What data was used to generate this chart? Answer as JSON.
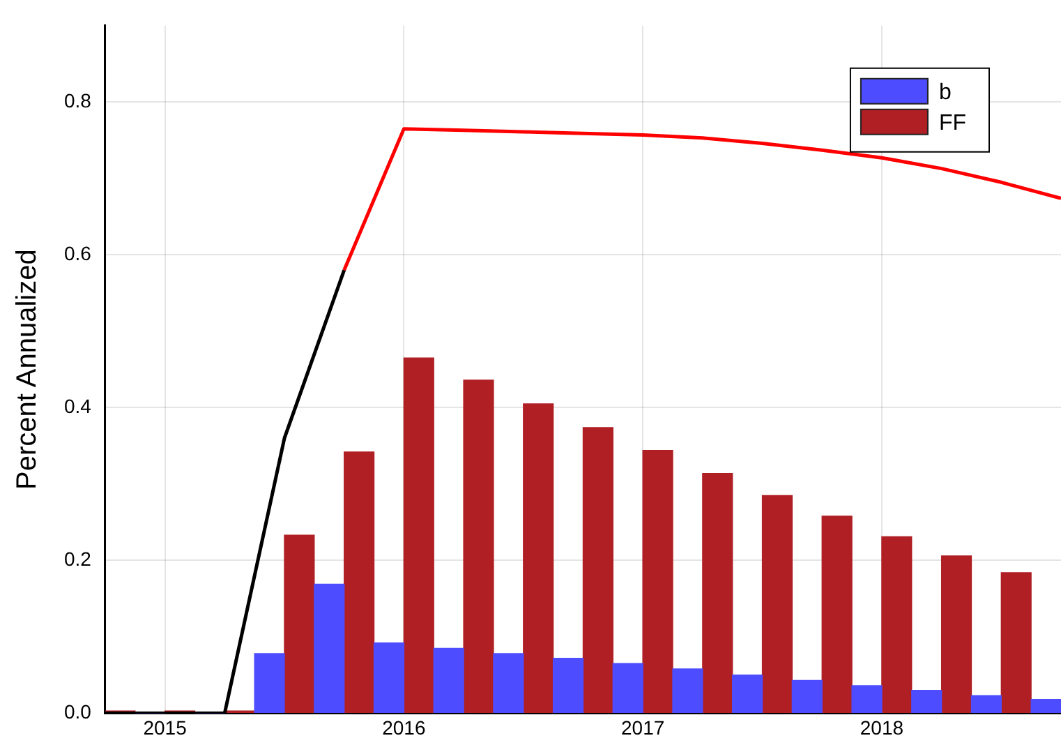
{
  "chart_data": {
    "type": "bar",
    "ylabel": "Percent Annualized",
    "x": [
      2014.75,
      2015,
      2015.25,
      2015.5,
      2015.75,
      2016,
      2016.25,
      2016.5,
      2016.75,
      2017,
      2017.25,
      2017.5,
      2017.75,
      2018,
      2018.25,
      2018.5,
      2018.75
    ],
    "series": [
      {
        "name": "b",
        "color": "#4d4dff",
        "values": [
          0,
          0,
          0,
          0.078,
          0.169,
          0.092,
          0.085,
          0.078,
          0.072,
          0.065,
          0.058,
          0.05,
          0.043,
          0.036,
          0.03,
          0.023,
          0.018
        ]
      },
      {
        "name": "FF",
        "color": "#b01f24",
        "values": [
          0.003,
          0.003,
          0.003,
          0.233,
          0.342,
          0.465,
          0.436,
          0.405,
          0.374,
          0.344,
          0.314,
          0.285,
          0.258,
          0.231,
          0.206,
          0.184,
          null
        ]
      },
      {
        "type": "line",
        "color": "#000000",
        "x": [
          2014.75,
          2015,
          2015.25,
          2015.5,
          2015.75
        ],
        "values": [
          0,
          0,
          0,
          0.36,
          0.58
        ]
      },
      {
        "type": "line",
        "color": "#ff0000",
        "x": [
          2015.75,
          2016,
          2016.25,
          2016.5,
          2016.75,
          2017,
          2017.25,
          2017.5,
          2017.75,
          2018,
          2018.25,
          2018.5,
          2018.75
        ],
        "values": [
          0.58,
          0.765,
          0.763,
          0.761,
          0.759,
          0.757,
          0.753,
          0.746,
          0.737,
          0.727,
          0.713,
          0.695,
          0.674
        ]
      }
    ],
    "xlim": [
      2014.75,
      2018.75
    ],
    "xticks": [
      2015,
      2016,
      2017,
      2018
    ],
    "ylim": [
      0,
      0.9
    ],
    "yticks": [
      {
        "value": 0,
        "label": "0.0"
      },
      0.2,
      0.4,
      0.6,
      0.8
    ],
    "grid": true,
    "legend": "top right",
    "marker": "none"
  }
}
